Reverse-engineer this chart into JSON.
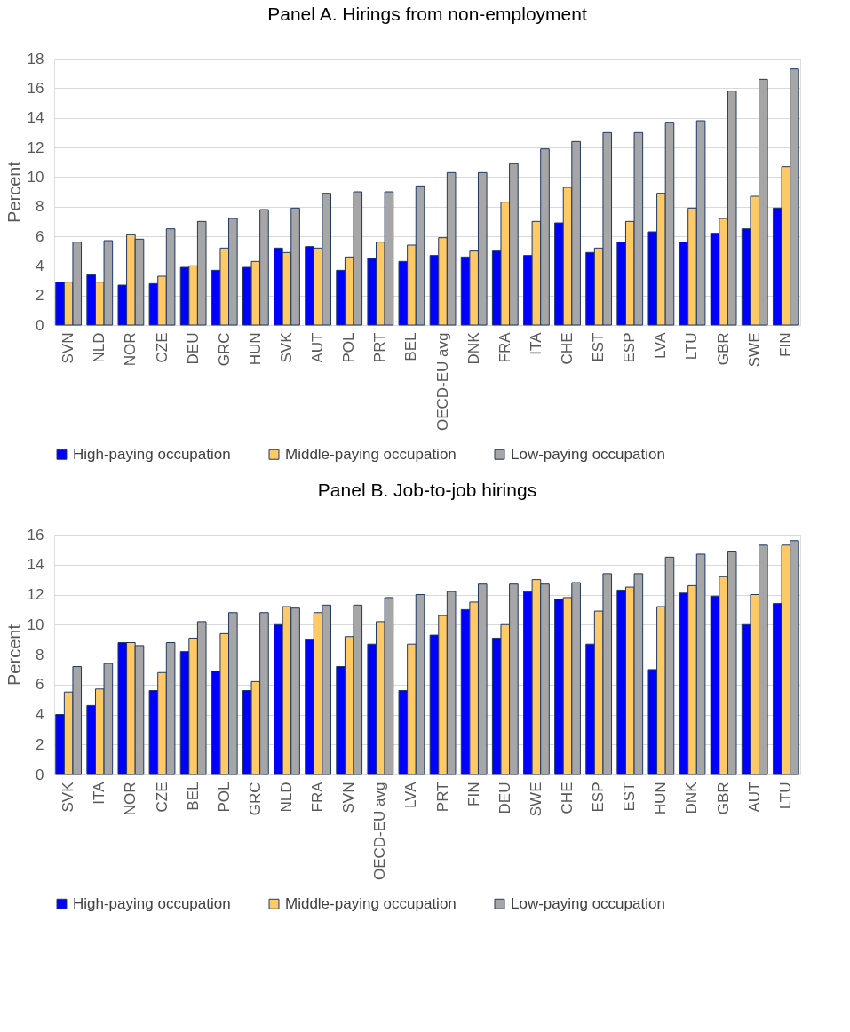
{
  "chart_data": [
    {
      "type": "bar",
      "title": "Panel A. Hirings from non-employment",
      "ylabel": "Percent",
      "categories": [
        "SVN",
        "NLD",
        "NOR",
        "CZE",
        "DEU",
        "GRC",
        "HUN",
        "SVK",
        "AUT",
        "POL",
        "PRT",
        "BEL",
        "OECD-EU avg",
        "DNK",
        "FRA",
        "ITA",
        "CHE",
        "EST",
        "ESP",
        "LVA",
        "LTU",
        "GBR",
        "SWE",
        "FIN"
      ],
      "series": [
        {
          "name": "High-paying occupation",
          "color": "#0000ff",
          "values": [
            2.9,
            3.4,
            2.7,
            2.8,
            3.9,
            3.7,
            3.9,
            5.2,
            5.3,
            3.7,
            4.5,
            4.3,
            4.7,
            4.6,
            5.0,
            4.7,
            6.9,
            4.9,
            5.6,
            6.3,
            5.6,
            6.2,
            6.5,
            7.9
          ]
        },
        {
          "name": "Middle-paying occupation",
          "color": "#ffc966",
          "values": [
            2.9,
            2.9,
            6.1,
            3.3,
            4.0,
            5.2,
            4.3,
            4.9,
            5.2,
            4.6,
            5.6,
            5.4,
            5.9,
            5.0,
            8.3,
            7.0,
            9.3,
            5.2,
            7.0,
            8.9,
            7.9,
            7.2,
            8.7,
            10.7
          ]
        },
        {
          "name": "Low-paying occupation",
          "color": "#a6a6a6",
          "values": [
            5.6,
            5.7,
            5.8,
            6.5,
            7.0,
            7.2,
            7.8,
            7.9,
            8.9,
            9.0,
            9.0,
            9.4,
            10.3,
            10.3,
            10.9,
            11.9,
            12.4,
            13.0,
            13.0,
            13.7,
            13.8,
            15.8,
            16.6,
            17.3
          ]
        }
      ],
      "ylim": [
        0,
        18
      ],
      "yticks": [
        0,
        2,
        4,
        6,
        8,
        10,
        12,
        14,
        16,
        18
      ],
      "grid": "y",
      "legend": "bottom"
    },
    {
      "type": "bar",
      "title": "Panel B. Job-to-job hirings",
      "ylabel": "Percent",
      "categories": [
        "SVK",
        "ITA",
        "NOR",
        "CZE",
        "BEL",
        "POL",
        "GRC",
        "NLD",
        "FRA",
        "SVN",
        "OECD-EU avg",
        "LVA",
        "PRT",
        "FIN",
        "DEU",
        "SWE",
        "CHE",
        "ESP",
        "EST",
        "HUN",
        "DNK",
        "GBR",
        "AUT",
        "LTU"
      ],
      "series": [
        {
          "name": "High-paying occupation",
          "color": "#0000ff",
          "values": [
            4.0,
            4.6,
            8.8,
            5.6,
            8.2,
            6.9,
            5.6,
            10.0,
            9.0,
            7.2,
            8.7,
            5.6,
            9.3,
            11.0,
            9.1,
            12.2,
            11.7,
            8.7,
            12.3,
            7.0,
            12.1,
            11.9,
            10.0,
            11.4
          ]
        },
        {
          "name": "Middle-paying occupation",
          "color": "#ffc966",
          "values": [
            5.5,
            5.7,
            8.8,
            6.8,
            9.1,
            9.4,
            6.2,
            11.2,
            10.8,
            9.2,
            10.2,
            8.7,
            10.6,
            11.5,
            10.0,
            13.0,
            11.8,
            10.9,
            12.5,
            11.2,
            12.6,
            13.2,
            12.0,
            15.3
          ]
        },
        {
          "name": "Low-paying occupation",
          "color": "#a6a6a6",
          "values": [
            7.2,
            7.4,
            8.6,
            8.8,
            10.2,
            10.8,
            10.8,
            11.1,
            11.3,
            11.3,
            11.8,
            12.0,
            12.2,
            12.7,
            12.7,
            12.7,
            12.8,
            13.4,
            13.4,
            14.5,
            14.7,
            14.9,
            15.3,
            15.6
          ]
        }
      ],
      "ylim": [
        0,
        16
      ],
      "yticks": [
        0,
        2,
        4,
        6,
        8,
        10,
        12,
        14,
        16
      ],
      "grid": "y",
      "legend": "bottom"
    }
  ]
}
